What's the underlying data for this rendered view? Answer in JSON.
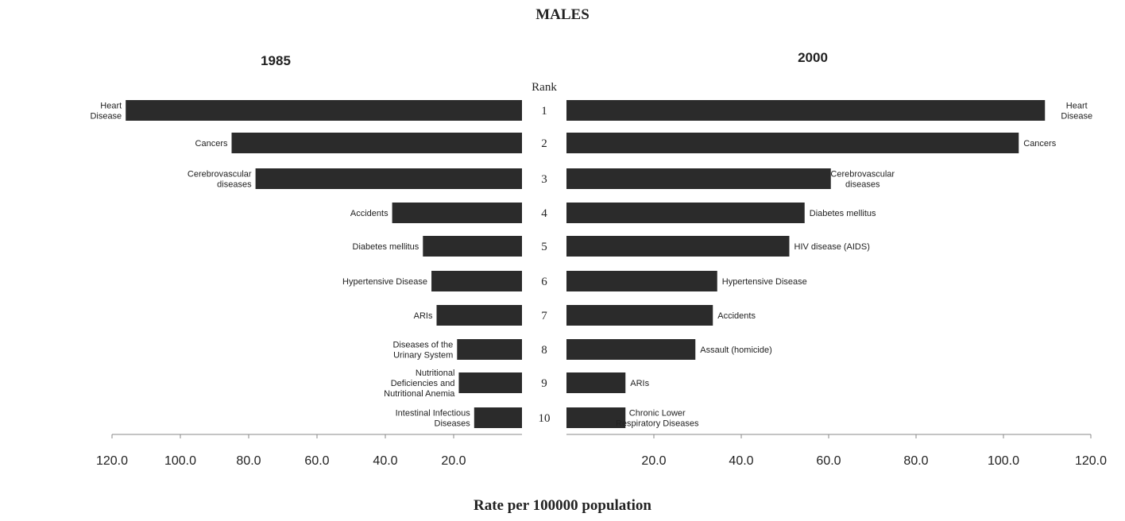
{
  "chart_data": {
    "type": "bar",
    "title": "MALES",
    "xlabel": "Rate per 100000 population",
    "rank_label": "Rank",
    "ranks": [
      "1",
      "2",
      "3",
      "4",
      "5",
      "6",
      "7",
      "8",
      "9",
      "10"
    ],
    "xlim": [
      0,
      120
    ],
    "tick_labels": [
      "120.0",
      "100.0",
      "80.0",
      "60.0",
      "40.0",
      "20.0"
    ],
    "tick_values": [
      120,
      100,
      80,
      60,
      40,
      20
    ],
    "right_tick_labels": [
      "20.0",
      "40.0",
      "60.0",
      "80.0",
      "100.0",
      "120.0"
    ],
    "right_tick_values": [
      20,
      40,
      60,
      80,
      100,
      120
    ],
    "panels": [
      {
        "title": "1985",
        "categories": [
          "Heart Disease",
          "Cancers",
          "Cerebrovascular diseases",
          "Accidents",
          "Diabetes mellitus",
          "Hypertensive Disease",
          "ARIs",
          "Diseases of the Urinary System",
          "Nutritional Deficiencies and Nutritional Anemia",
          "Intestinal Infectious Diseases"
        ],
        "label_lines": [
          [
            "Heart",
            "Disease"
          ],
          [
            "Cancers"
          ],
          [
            "Cerebrovascular",
            "diseases"
          ],
          [
            "Accidents"
          ],
          [
            "Diabetes mellitus"
          ],
          [
            "Hypertensive Disease"
          ],
          [
            "ARIs"
          ],
          [
            "Diseases of the",
            "Urinary System"
          ],
          [
            "Nutritional",
            "Deficiencies and",
            "Nutritional Anemia"
          ],
          [
            "Intestinal Infectious",
            "Diseases"
          ]
        ],
        "values": [
          116,
          85,
          78,
          38,
          29,
          26.5,
          25,
          19,
          18.5,
          14
        ]
      },
      {
        "title": "2000",
        "categories": [
          "Heart Disease",
          "Cancers",
          "Cerebrovascular diseases",
          "Diabetes mellitus",
          "HIV disease (AIDS)",
          "Hypertensive Disease",
          "Accidents",
          "Assault (homicide)",
          "ARIs",
          "Chronic Lower Respiratory Diseases"
        ],
        "label_lines": [
          [
            "Heart",
            "Disease"
          ],
          [
            "Cancers"
          ],
          [
            "Cerebrovascular",
            "diseases"
          ],
          [
            "Diabetes mellitus"
          ],
          [
            "HIV disease (AIDS)"
          ],
          [
            "Hypertensive Disease"
          ],
          [
            "Accidents"
          ],
          [
            "Assault (homicide)"
          ],
          [
            "ARIs"
          ],
          [
            "Chronic Lower",
            "Respiratory Diseases"
          ]
        ],
        "values": [
          109.5,
          103.5,
          60.5,
          54.5,
          51,
          34.5,
          33.5,
          29.5,
          13.5,
          13.5
        ]
      }
    ]
  }
}
